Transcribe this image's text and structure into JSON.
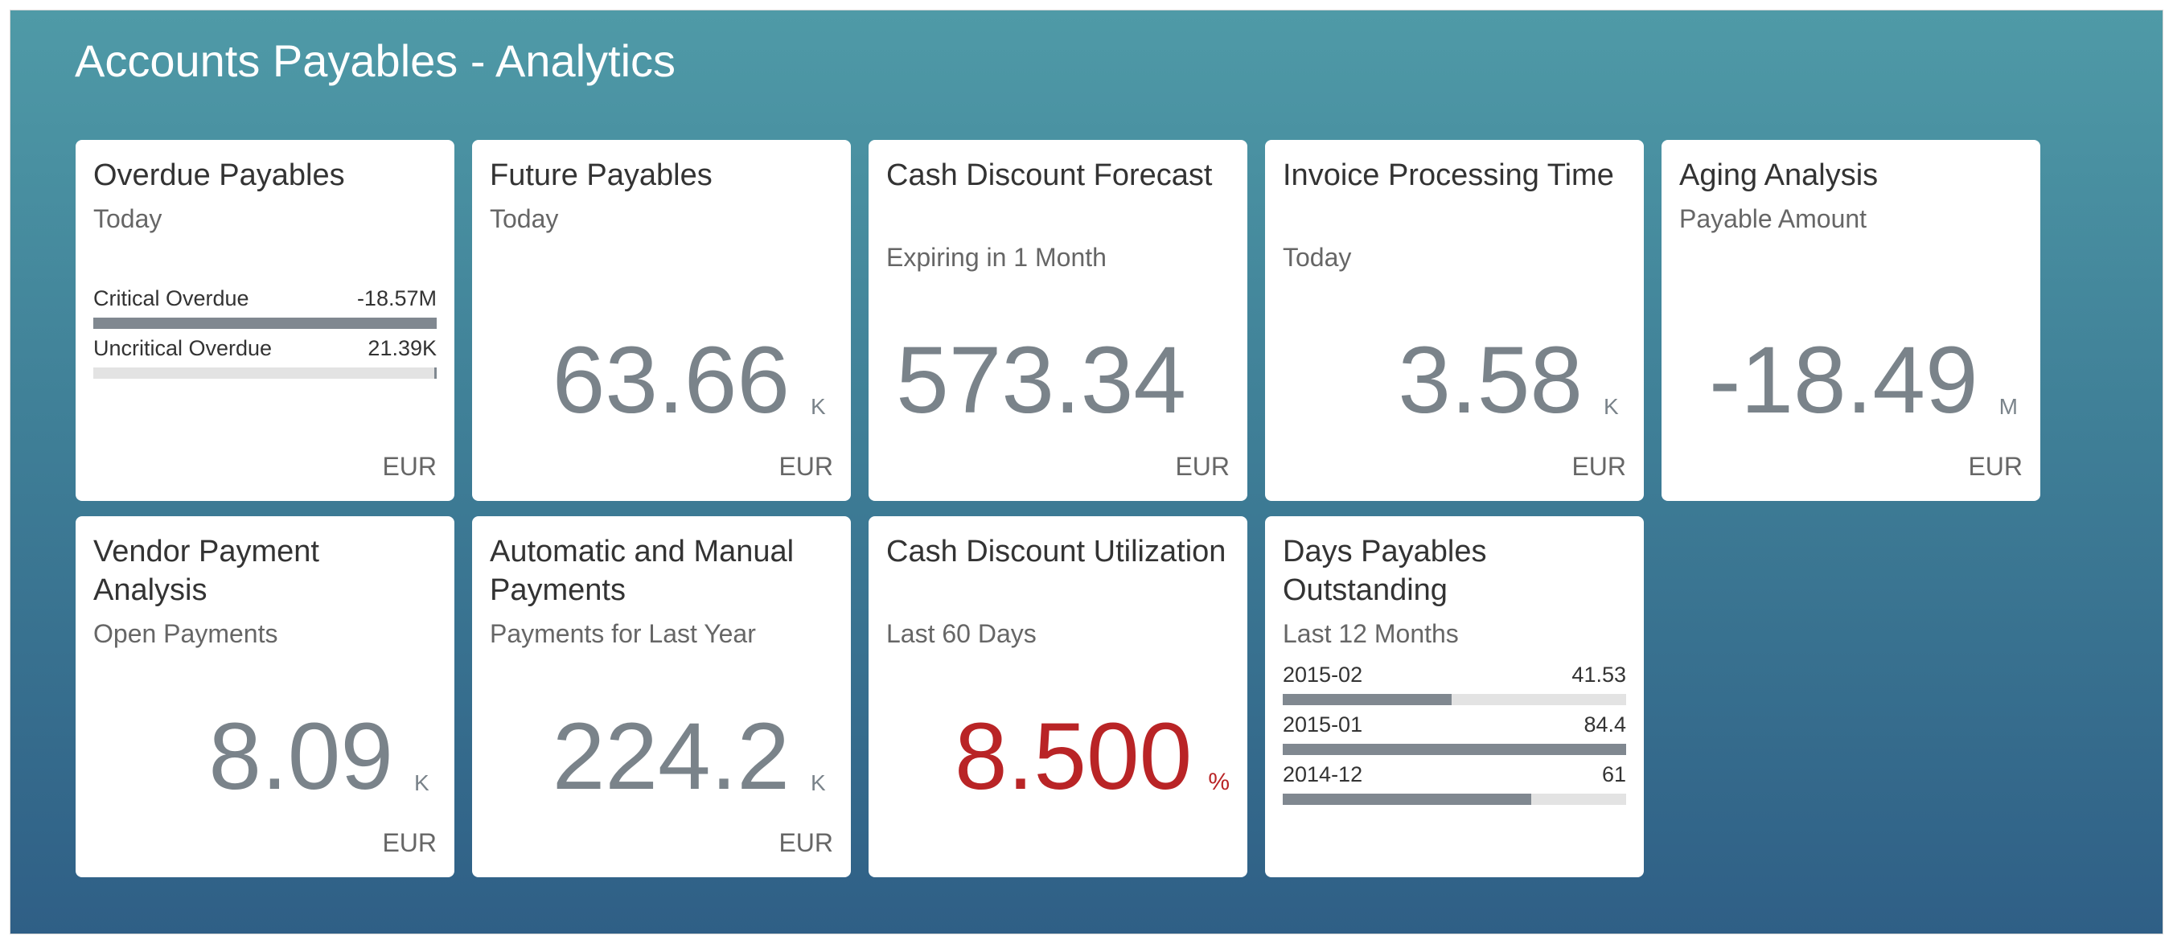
{
  "page": {
    "title": "Accounts Payables - Analytics"
  },
  "tiles": [
    {
      "title": "Overdue Payables",
      "subtitle": "Today",
      "unit": "EUR",
      "comparison": [
        {
          "label": "Critical Overdue",
          "value": "-18.57M",
          "fill_fraction": 1.0
        },
        {
          "label": "Uncritical Overdue",
          "value": "21.39K",
          "fill_fraction": 0.01
        }
      ]
    },
    {
      "title": "Future Payables",
      "subtitle": "Today",
      "value": "63.66",
      "scale": "K",
      "unit": "EUR"
    },
    {
      "title": "Cash Discount Forecast",
      "subtitle": "Expiring in 1 Month",
      "value": "573.34",
      "scale": "",
      "unit": "EUR"
    },
    {
      "title": "Invoice Processing Time",
      "subtitle": "Today",
      "value": "3.58",
      "scale": "K",
      "unit": "EUR"
    },
    {
      "title": "Aging Analysis",
      "subtitle": "Payable Amount",
      "value": "-18.49",
      "scale": "M",
      "unit": "EUR"
    },
    {
      "title": "Vendor Payment Analysis",
      "subtitle": "Open Payments",
      "value": "8.09",
      "scale": "K",
      "unit": "EUR"
    },
    {
      "title": "Automatic and Manual Payments",
      "subtitle": "Payments for Last Year",
      "value": "224.2",
      "scale": "K",
      "unit": "EUR"
    },
    {
      "title": "Cash Discount Utilization",
      "subtitle": "Last 60 Days",
      "value": "8.500",
      "scale": "%",
      "value_color": "#b92426"
    },
    {
      "title": "Days Payables Outstanding",
      "subtitle": "Last 12 Months",
      "comparison": [
        {
          "label": "2015-02",
          "value": "41.53",
          "fill_value": 41.53
        },
        {
          "label": "2015-01",
          "value": "84.4",
          "fill_value": 84.4
        },
        {
          "label": "2014-12",
          "value": "61",
          "fill_value": 61
        }
      ],
      "comparison_max": 84.4
    }
  ]
}
